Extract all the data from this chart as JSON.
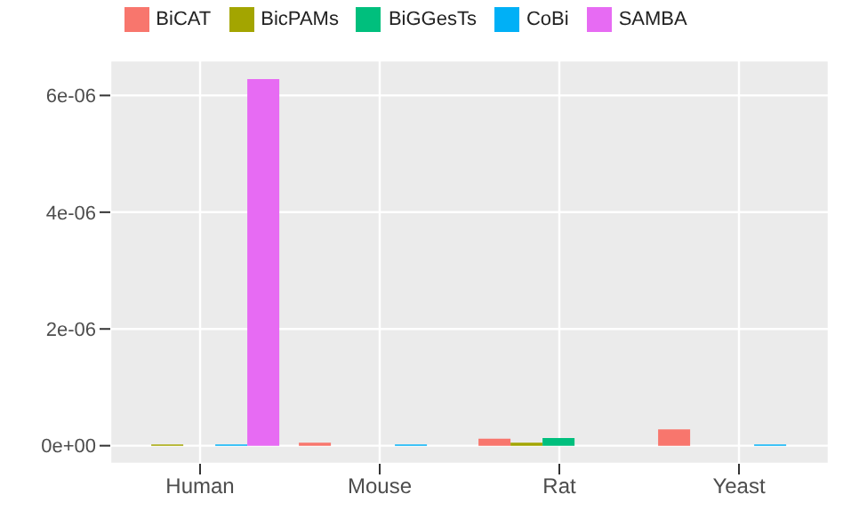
{
  "chart_data": {
    "type": "bar",
    "categories": [
      "Human",
      "Mouse",
      "Rat",
      "Yeast"
    ],
    "series": [
      {
        "name": "BiCAT",
        "color": "#f8766d",
        "values": [
          null,
          5e-08,
          1.2e-07,
          2.8e-07
        ]
      },
      {
        "name": "BicPAMs",
        "color": "#a3a500",
        "values": [
          2e-08,
          null,
          5e-08,
          null
        ]
      },
      {
        "name": "BiGGesTs",
        "color": "#00bf7d",
        "values": [
          null,
          null,
          1.3e-07,
          null
        ]
      },
      {
        "name": "CoBi",
        "color": "#00b0f6",
        "values": [
          2e-08,
          2e-08,
          null,
          2e-08
        ]
      },
      {
        "name": "SAMBA",
        "color": "#e76bf3",
        "values": [
          6.28e-06,
          null,
          null,
          null
        ]
      }
    ],
    "ylim": [
      -3.1e-07,
      6.6e-06
    ],
    "yticks": [
      {
        "value": 0,
        "label": "0e+00"
      },
      {
        "value": 2e-06,
        "label": "2e-06"
      },
      {
        "value": 4e-06,
        "label": "4e-06"
      },
      {
        "value": 6e-06,
        "label": "6e-06"
      }
    ],
    "grid": true,
    "legend": "top"
  }
}
